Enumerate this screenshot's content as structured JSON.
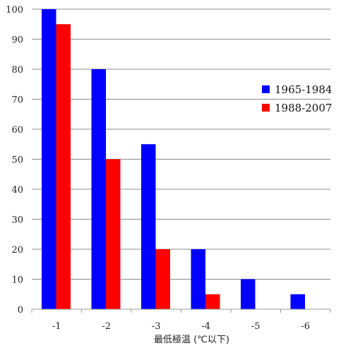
{
  "chart_data": {
    "type": "bar",
    "title": "",
    "xlabel": "最低極温 (℃以下)",
    "ylabel": "",
    "categories": [
      "-1",
      "-2",
      "-3",
      "-4",
      "-5",
      "-6"
    ],
    "series": [
      {
        "name": "1965-1984",
        "color": "#0000ff",
        "values": [
          100,
          80,
          55,
          20,
          10,
          5
        ]
      },
      {
        "name": "1988-2007",
        "color": "#ff0000",
        "values": [
          95,
          50,
          20,
          5,
          0,
          0
        ]
      }
    ],
    "ylim": [
      0,
      100
    ],
    "yticks": [
      0,
      10,
      20,
      30,
      40,
      50,
      60,
      70,
      80,
      90,
      100
    ],
    "grid": true,
    "legend_position": "right"
  }
}
